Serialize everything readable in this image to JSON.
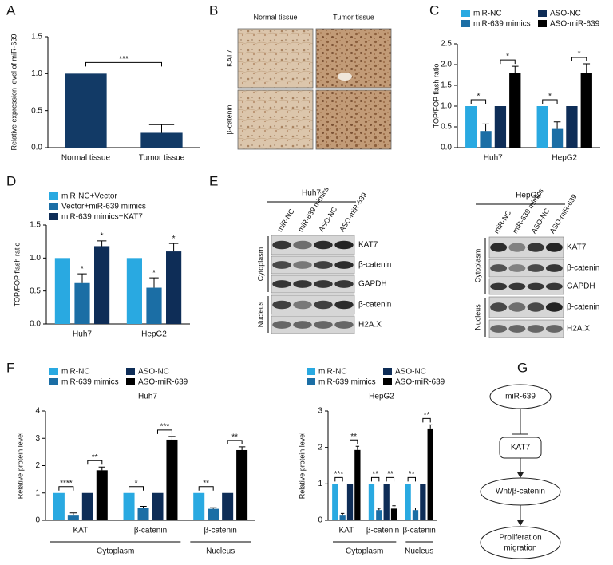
{
  "panel_labels": [
    "A",
    "B",
    "C",
    "D",
    "E",
    "F",
    "G"
  ],
  "chart_data": [
    {
      "type": "bar",
      "ylabel": "Relative expression level of miR-639",
      "categories": [
        "Normal tissue",
        "Tumor tissue"
      ],
      "values": [
        1.0,
        0.2
      ],
      "errors": [
        null,
        0.11
      ],
      "color": "#123a66",
      "ylim": [
        0,
        1.5
      ],
      "yticks": [
        {
          "value": 0,
          "label": "0.0"
        },
        0.5,
        {
          "value": 1,
          "label": "1.0"
        },
        1.5
      ],
      "significance": [
        "***"
      ]
    },
    {
      "type": "bar",
      "ylabel": "TOP/FOP flash ratio",
      "categories": [
        "Huh7",
        "HepG2"
      ],
      "series": [
        {
          "name": "miR-NC",
          "color": "#29a9e1",
          "values": [
            1.0,
            1.0
          ],
          "errors": [
            null,
            null
          ]
        },
        {
          "name": "miR-639 mimics",
          "color": "#1b6ea5",
          "values": [
            0.4,
            0.45
          ],
          "errors": [
            0.17,
            0.17
          ]
        },
        {
          "name": "ASO-NC",
          "color": "#0e2d57",
          "values": [
            1.0,
            1.0
          ],
          "errors": [
            null,
            null
          ]
        },
        {
          "name": "ASO-miR-639",
          "color": "#000000",
          "values": [
            1.8,
            1.8
          ],
          "errors": [
            0.16,
            0.22
          ]
        }
      ],
      "ylim": [
        0,
        2.5
      ],
      "yticks": [
        {
          "value": 0,
          "label": "0.0"
        },
        0.5,
        {
          "value": 1,
          "label": "1.0"
        },
        1.5,
        {
          "value": 2,
          "label": "2.0"
        },
        2.5
      ],
      "significance": [
        "*",
        "*",
        "*",
        "*"
      ]
    },
    {
      "type": "bar",
      "ylabel": "TOP/FOP flash ratio",
      "categories": [
        "Huh7",
        "HepG2"
      ],
      "series": [
        {
          "name": "miR-NC+Vector",
          "color": "#29a9e1",
          "values": [
            1.0,
            1.0
          ],
          "errors": [
            null,
            null
          ]
        },
        {
          "name": "Vector+miR-639 mimics",
          "color": "#1b6ea5",
          "values": [
            0.62,
            0.55
          ],
          "errors": [
            0.14,
            0.15
          ]
        },
        {
          "name": "miR-639 mimics+KAT7",
          "color": "#0e2d57",
          "values": [
            1.18,
            1.1
          ],
          "errors": [
            0.08,
            0.12
          ]
        }
      ],
      "ylim": [
        0,
        1.5
      ],
      "yticks": [
        {
          "value": 0,
          "label": "0.0"
        },
        0.5,
        {
          "value": 1,
          "label": "1.0"
        },
        1.5
      ],
      "significance": [
        "*",
        "*",
        "*",
        "*"
      ]
    },
    {
      "type": "bar",
      "title": "Huh7",
      "ylabel": "Relative protein level",
      "categories": [
        "KAT",
        "β-catenin",
        "β-catenin"
      ],
      "groups": [
        "Cytoplasm",
        "Nucleus"
      ],
      "series": [
        {
          "name": "miR-NC",
          "color": "#29a9e1",
          "values": [
            1.0,
            1.0,
            1.0
          ],
          "errors": [
            null,
            null,
            null
          ]
        },
        {
          "name": "miR-639 mimics",
          "color": "#1b6ea5",
          "values": [
            0.2,
            0.45,
            0.42
          ],
          "errors": [
            0.07,
            0.06,
            0.04
          ]
        },
        {
          "name": "ASO-NC",
          "color": "#0e2d57",
          "values": [
            1.0,
            1.0,
            1.0
          ],
          "errors": [
            null,
            null,
            null
          ]
        },
        {
          "name": "ASO-miR-639",
          "color": "#000000",
          "values": [
            1.83,
            2.95,
            2.57
          ],
          "errors": [
            0.12,
            0.12,
            0.12
          ]
        }
      ],
      "ylim": [
        0,
        4
      ],
      "yticks": [
        0,
        1,
        2,
        3,
        4
      ],
      "significance": [
        "****",
        "**",
        "*",
        "***",
        "**",
        "**"
      ]
    },
    {
      "type": "bar",
      "title": "HepG2",
      "ylabel": "Relative protein level",
      "categories": [
        "KAT",
        "β-catenin",
        "β-catenin"
      ],
      "groups": [
        "Cytoplasm",
        "Nucleus"
      ],
      "series": [
        {
          "name": "miR-NC",
          "color": "#29a9e1",
          "values": [
            1.0,
            1.0,
            1.0
          ],
          "errors": [
            null,
            null,
            null
          ]
        },
        {
          "name": "miR-639 mimics",
          "color": "#1b6ea5",
          "values": [
            0.15,
            0.28,
            0.28
          ],
          "errors": [
            0.04,
            0.05,
            0.06
          ]
        },
        {
          "name": "ASO-NC",
          "color": "#0e2d57",
          "values": [
            1.0,
            1.0,
            1.0
          ],
          "errors": [
            null,
            null,
            null
          ]
        },
        {
          "name": "ASO-miR-639",
          "color": "#000000",
          "values": [
            1.93,
            0.32,
            2.52
          ],
          "errors": [
            0.1,
            0.08,
            0.1
          ]
        }
      ],
      "ylim": [
        0,
        3
      ],
      "yticks": [
        0,
        1,
        2,
        3
      ],
      "significance": [
        "***",
        "**",
        "**",
        "**",
        "**",
        "**"
      ]
    }
  ],
  "tissue": {
    "columns": [
      "Normal tissue",
      "Tumor tissue"
    ],
    "rows": [
      "KAT7",
      "β-catenin"
    ]
  },
  "blots": [
    {
      "title": "Huh7",
      "lanes": [
        "miR-NC",
        "miR-639 mimics",
        "ASO-NC",
        "ASO-miR-639"
      ],
      "rows": [
        "KAT7",
        "β-catenin",
        "GAPDH",
        "β-catenin",
        "H2A.X"
      ],
      "compartments": [
        "Cytoplasm",
        "Nucleus"
      ]
    },
    {
      "title": "HepG2",
      "lanes": [
        "miR-NC",
        "miR-639 mimics",
        "ASO-NC",
        "ASO-miR-639"
      ],
      "rows": [
        "KAT7",
        "β-catenin",
        "GAPDH",
        "β-catenin",
        "H2A.X"
      ],
      "compartments": [
        "Cytoplasm",
        "Nucleus"
      ]
    }
  ],
  "pathway": {
    "nodes": [
      "miR-639",
      "KAT7",
      "Wnt/β-catenin"
    ],
    "outcome": [
      "Proliferation",
      "migration"
    ]
  }
}
